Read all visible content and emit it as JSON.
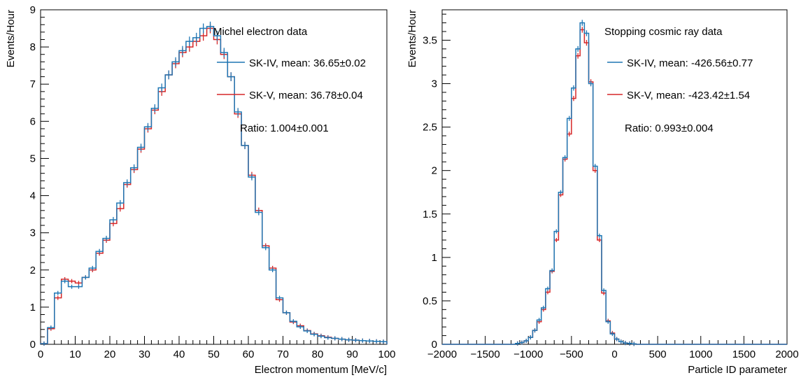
{
  "colors": {
    "sk4": "#1f77b4",
    "sk5": "#d62728",
    "axis": "#000000"
  },
  "chart_data": [
    {
      "type": "histogram",
      "title": "Michel electron data",
      "xlabel": "Electron momentum [MeV/c]",
      "ylabel": "Events/Hour",
      "xlim": [
        0,
        100
      ],
      "ylim": [
        0,
        9
      ],
      "xticks": [
        0,
        10,
        20,
        30,
        40,
        50,
        60,
        70,
        80,
        90,
        100
      ],
      "yticks": [
        0,
        1,
        2,
        3,
        4,
        5,
        6,
        7,
        8,
        9
      ],
      "bin_width": 2,
      "legend_position": "top-right",
      "series": [
        {
          "name": "SK-IV, mean: 36.65±0.02",
          "bin_centers": [
            1,
            3,
            5,
            7,
            9,
            11,
            13,
            15,
            17,
            19,
            21,
            23,
            25,
            27,
            29,
            31,
            33,
            35,
            37,
            39,
            41,
            43,
            45,
            47,
            49,
            51,
            53,
            55,
            57,
            59,
            61,
            63,
            65,
            67,
            69,
            71,
            73,
            75,
            77,
            79,
            81,
            83,
            85,
            87,
            89,
            91,
            93,
            95,
            97,
            99
          ],
          "values": [
            0.02,
            0.45,
            1.38,
            1.7,
            1.55,
            1.55,
            1.8,
            2.05,
            2.5,
            2.85,
            3.35,
            3.8,
            4.35,
            4.75,
            5.3,
            5.85,
            6.35,
            6.9,
            7.25,
            7.6,
            7.9,
            8.15,
            8.25,
            8.5,
            8.55,
            8.3,
            7.85,
            7.2,
            6.25,
            5.35,
            4.5,
            3.55,
            2.6,
            2.0,
            1.25,
            0.85,
            0.62,
            0.47,
            0.36,
            0.27,
            0.22,
            0.18,
            0.16,
            0.14,
            0.12,
            0.11,
            0.1,
            0.09,
            0.08,
            0.07
          ]
        },
        {
          "name": "SK-V, mean: 36.78±0.04",
          "bin_centers": [
            1,
            3,
            5,
            7,
            9,
            11,
            13,
            15,
            17,
            19,
            21,
            23,
            25,
            27,
            29,
            31,
            33,
            35,
            37,
            39,
            41,
            43,
            45,
            47,
            49,
            51,
            53,
            55,
            57,
            59,
            61,
            63,
            65,
            67,
            69,
            71,
            73,
            75,
            77,
            79,
            81,
            83,
            85,
            87,
            89,
            91,
            93,
            95,
            97,
            99
          ],
          "values": [
            0.02,
            0.42,
            1.25,
            1.75,
            1.7,
            1.65,
            1.8,
            2.0,
            2.45,
            2.8,
            3.25,
            3.65,
            4.3,
            4.7,
            5.25,
            5.8,
            6.3,
            6.8,
            7.25,
            7.55,
            7.85,
            8.0,
            8.15,
            8.3,
            8.5,
            8.2,
            7.8,
            7.2,
            6.2,
            5.35,
            4.55,
            3.6,
            2.65,
            2.05,
            1.2,
            0.85,
            0.6,
            0.5,
            0.37,
            0.28,
            0.23,
            0.19,
            0.16,
            0.14,
            0.12,
            0.11,
            0.1,
            0.09,
            0.08,
            0.07
          ]
        }
      ],
      "annotations": [
        "Ratio: 1.004±0.001"
      ]
    },
    {
      "type": "histogram",
      "title": "Stopping cosmic ray data",
      "xlabel": "Particle ID parameter",
      "ylabel": "Events/Hour",
      "xlim": [
        -2000,
        2000
      ],
      "ylim": [
        0,
        3.85
      ],
      "xticks": [
        -2000,
        -1500,
        -1000,
        -500,
        0,
        500,
        1000,
        1500,
        2000
      ],
      "yticks": [
        0,
        0.5,
        1,
        1.5,
        2,
        2.5,
        3,
        3.5
      ],
      "bin_width": 50,
      "legend_position": "top-right",
      "series": [
        {
          "name": "SK-IV, mean: -426.56±0.77",
          "bin_centers": [
            -1175,
            -1125,
            -1075,
            -1025,
            -975,
            -925,
            -875,
            -825,
            -775,
            -725,
            -675,
            -625,
            -575,
            -525,
            -475,
            -425,
            -375,
            -325,
            -275,
            -225,
            -175,
            -125,
            -75,
            -25,
            25,
            75,
            125,
            175,
            225,
            275,
            325
          ],
          "values": [
            0.0,
            0.01,
            0.02,
            0.04,
            0.08,
            0.16,
            0.28,
            0.42,
            0.64,
            0.85,
            1.3,
            1.75,
            2.15,
            2.6,
            2.95,
            3.4,
            3.7,
            3.58,
            3.0,
            2.05,
            1.25,
            0.62,
            0.26,
            0.12,
            0.06,
            0.03,
            0.015,
            0.01,
            0.005,
            0.0,
            0.0
          ]
        },
        {
          "name": "SK-V, mean: -423.42±1.54",
          "bin_centers": [
            -1175,
            -1125,
            -1075,
            -1025,
            -975,
            -925,
            -875,
            -825,
            -775,
            -725,
            -675,
            -625,
            -575,
            -525,
            -475,
            -425,
            -375,
            -325,
            -275,
            -225,
            -175,
            -125,
            -75,
            -25,
            25,
            75,
            125,
            175,
            225,
            275,
            325
          ],
          "values": [
            0.0,
            0.01,
            0.02,
            0.04,
            0.08,
            0.16,
            0.26,
            0.4,
            0.6,
            0.84,
            1.2,
            1.72,
            2.13,
            2.42,
            2.83,
            3.32,
            3.62,
            3.47,
            3.02,
            2.0,
            1.2,
            0.59,
            0.27,
            0.13,
            0.06,
            0.03,
            0.015,
            0.01,
            0.005,
            0.0,
            0.0
          ]
        }
      ],
      "annotations": [
        "Ratio: 0.993±0.004"
      ]
    }
  ]
}
